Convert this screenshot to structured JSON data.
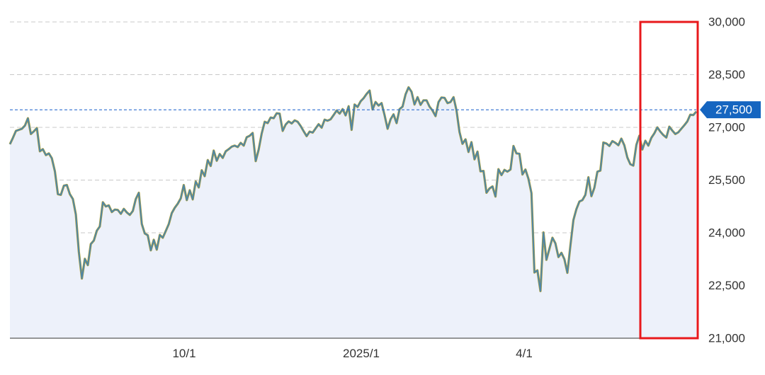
{
  "chart_data": {
    "type": "area",
    "title": "",
    "xlabel": "",
    "ylabel": "",
    "ylim": [
      21000,
      30000
    ],
    "y_ticks": [
      "30,000",
      "28,500",
      "27,500",
      "27,000",
      "25,500",
      "24,000",
      "22,500",
      "21,000"
    ],
    "x_ticks": [
      "10/1",
      "2025/1",
      "4/1"
    ],
    "grid": "horizontal dashed",
    "current_value": 27500,
    "current_value_label": "27,500",
    "highlight": "red box around the most recent segment",
    "series": [
      {
        "values": [
          26520,
          26700,
          26900,
          26930,
          26960,
          27050,
          27260,
          26810,
          26890,
          26980,
          26320,
          26380,
          26210,
          26260,
          26120,
          25750,
          25100,
          25080,
          25340,
          25360,
          25100,
          24960,
          24520,
          23460,
          22700,
          23260,
          23080,
          23680,
          23780,
          24060,
          24180,
          24870,
          24750,
          24780,
          24590,
          24660,
          24650,
          24540,
          24680,
          24580,
          24510,
          24620,
          24960,
          25140,
          24250,
          23980,
          23930,
          23500,
          23800,
          23520,
          23940,
          23860,
          24050,
          24250,
          24560,
          24710,
          24830,
          24980,
          25360,
          24930,
          25210,
          24950,
          25460,
          25290,
          25780,
          25610,
          26070,
          25900,
          26340,
          26050,
          26240,
          26130,
          26320,
          26380,
          26450,
          26480,
          26440,
          26560,
          26480,
          26720,
          26760,
          26840,
          26040,
          26370,
          26820,
          27160,
          27120,
          27280,
          27260,
          27400,
          27390,
          26900,
          27080,
          27170,
          27110,
          27200,
          27160,
          27040,
          26890,
          26750,
          26880,
          26850,
          26970,
          27090,
          26990,
          27220,
          27190,
          27230,
          27350,
          27480,
          27390,
          27520,
          27340,
          27600,
          26930,
          27650,
          27580,
          27740,
          27830,
          27950,
          28050,
          27510,
          27720,
          27620,
          27690,
          27350,
          26960,
          27230,
          27370,
          27120,
          27520,
          27590,
          27940,
          28140,
          28010,
          27650,
          27860,
          27640,
          27770,
          27770,
          27590,
          27480,
          27320,
          27720,
          27850,
          27840,
          27690,
          27720,
          27860,
          27480,
          26870,
          26530,
          26660,
          26300,
          26580,
          26090,
          26310,
          25750,
          25760,
          25140,
          25260,
          25320,
          25030,
          25810,
          25640,
          25790,
          25740,
          25800,
          26470,
          26260,
          26250,
          25660,
          25800,
          25540,
          25130,
          22870,
          22930,
          22340,
          24010,
          23230,
          23550,
          23860,
          23700,
          23310,
          23430,
          23250,
          22860,
          23640,
          24360,
          24670,
          24890,
          24930,
          25080,
          25580,
          25040,
          25280,
          25740,
          25770,
          26570,
          26540,
          26470,
          26610,
          26560,
          26490,
          26680,
          26490,
          26140,
          25950,
          25910,
          26500,
          26760,
          26370,
          26620,
          26480,
          26700,
          26830,
          27000,
          26880,
          26780,
          26710,
          27020,
          26910,
          26810,
          26860,
          26960,
          27060,
          27170,
          27360,
          27350,
          27450
        ]
      }
    ]
  }
}
